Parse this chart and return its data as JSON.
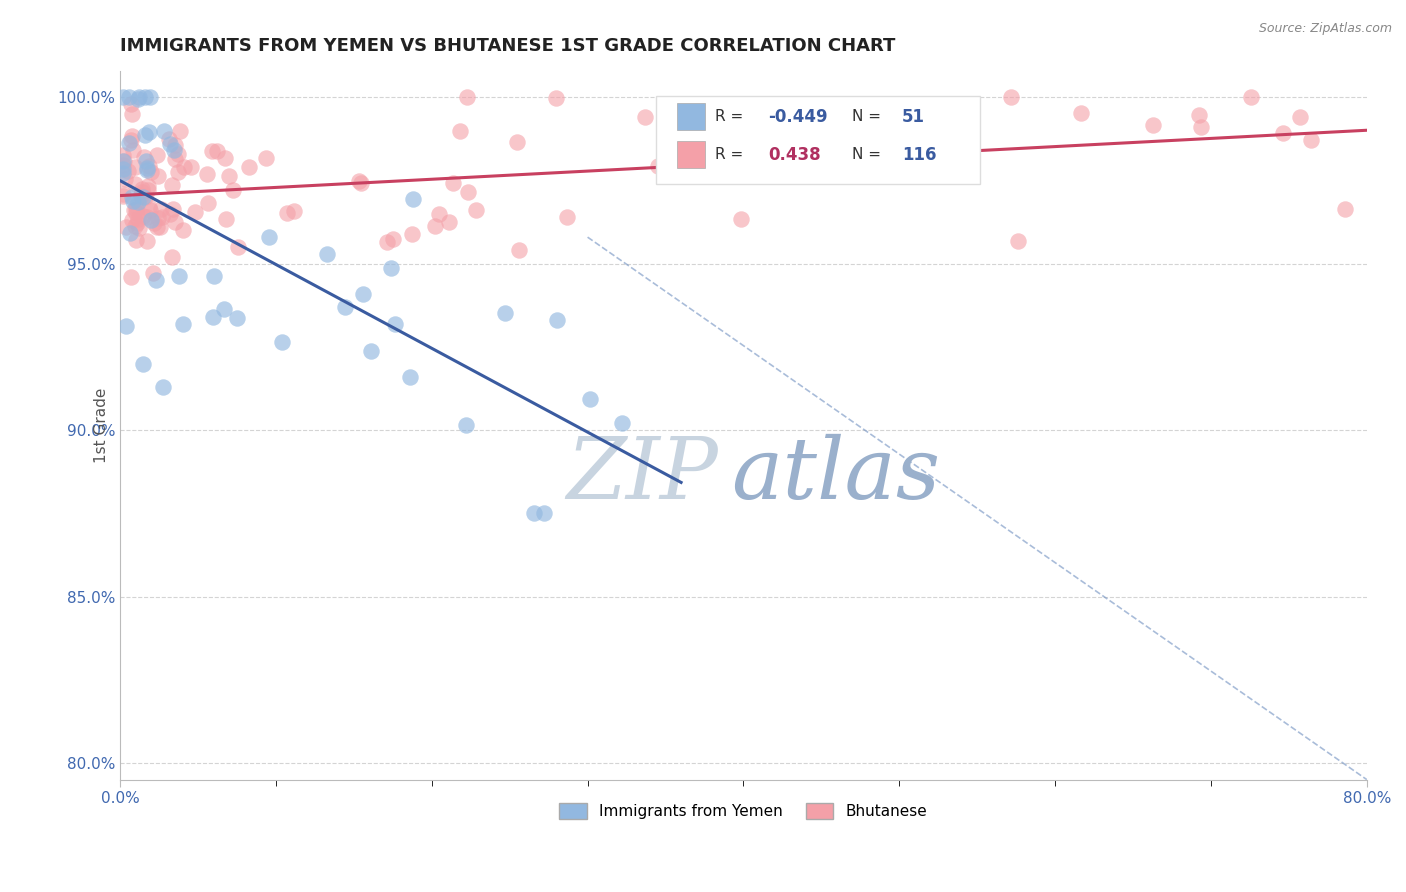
{
  "title": "IMMIGRANTS FROM YEMEN VS BHUTANESE 1ST GRADE CORRELATION CHART",
  "source": "Source: ZipAtlas.com",
  "ylabel": "1st Grade",
  "xlim": [
    0.0,
    0.8
  ],
  "ylim": [
    0.795,
    1.008
  ],
  "xtick_left_label": "0.0%",
  "xtick_right_label": "80.0%",
  "xtick_left_val": 0.0,
  "xtick_right_val": 0.8,
  "ytick_labels": [
    "80.0%",
    "85.0%",
    "90.0%",
    "95.0%",
    "100.0%"
  ],
  "ytick_vals": [
    0.8,
    0.85,
    0.9,
    0.95,
    1.0
  ],
  "legend_label1": "Immigrants from Yemen",
  "legend_label2": "Bhutanese",
  "legend_color1": "#92b8e0",
  "legend_color2": "#f4a0a8",
  "r1": -0.449,
  "n1": 51,
  "r2": 0.438,
  "n2": 116,
  "r1_color": "#3a5ba0",
  "r2_color": "#b03060",
  "n_color": "#3a5ba0",
  "trend1_color": "#3a5ba0",
  "trend2_color": "#c84060",
  "dash_color": "#7090c0",
  "watermark_zip": "ZIP",
  "watermark_atlas": "atlas",
  "watermark_zip_color": "#c8d4e0",
  "watermark_atlas_color": "#9ab0cc",
  "background_color": "#ffffff",
  "grid_color": "#d0d0d0",
  "title_color": "#222222",
  "title_fontsize": 13,
  "axis_label_color": "#555555",
  "ytick_color": "#4169b0",
  "xtick_color": "#4169b0"
}
